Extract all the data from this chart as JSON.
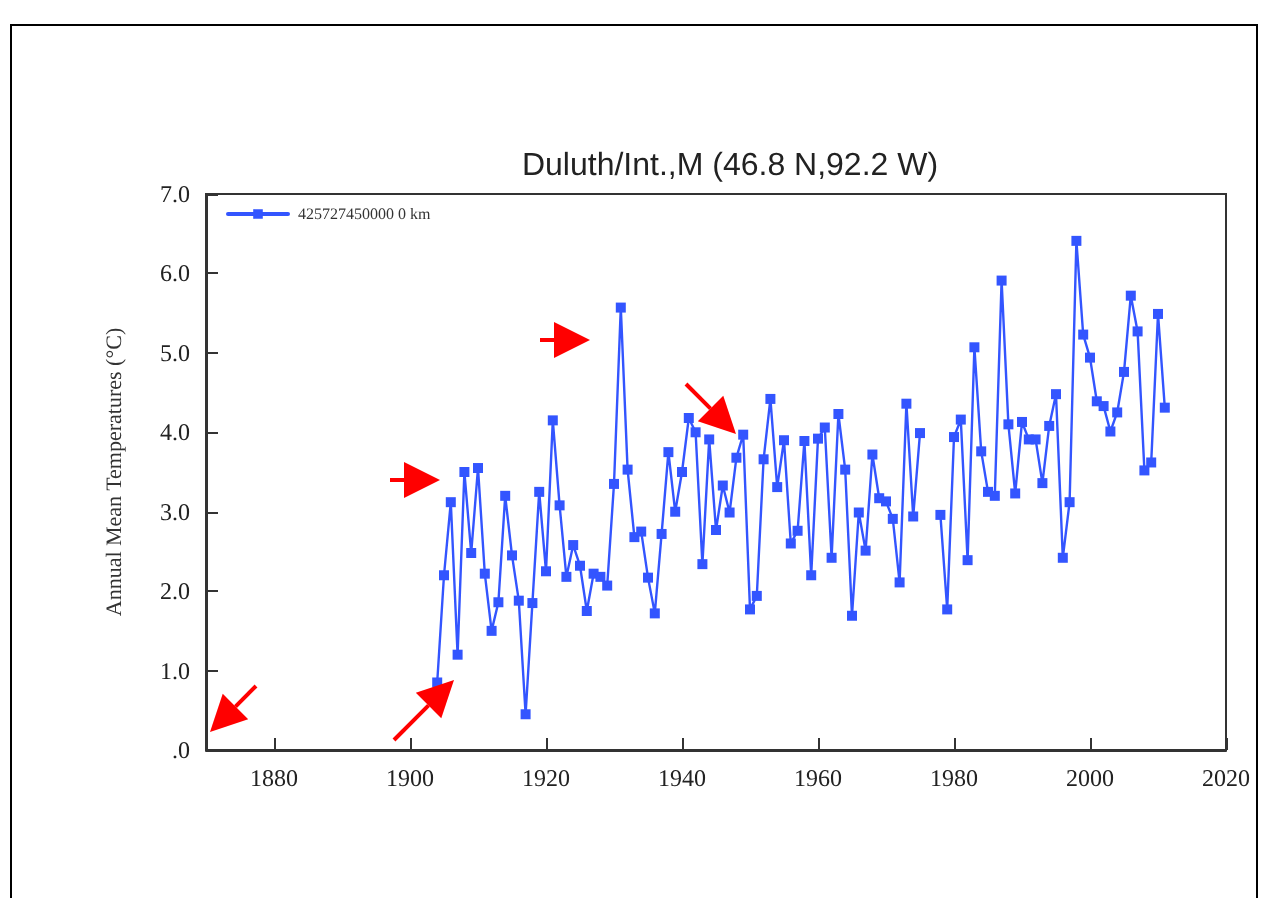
{
  "chart_data": {
    "type": "line",
    "title": "Duluth/Int.,M (46.8 N,92.2 W)",
    "ylabel": "Annual Mean Temperatures (°C)",
    "x": [
      1904,
      1905,
      1906,
      1907,
      1908,
      1909,
      1910,
      1911,
      1912,
      1913,
      1914,
      1915,
      1916,
      1917,
      1918,
      1919,
      1920,
      1921,
      1922,
      1923,
      1924,
      1925,
      1926,
      1927,
      1928,
      1929,
      1930,
      1931,
      1932,
      1933,
      1934,
      1935,
      1936,
      1937,
      1938,
      1939,
      1940,
      1941,
      1942,
      1943,
      1944,
      1945,
      1946,
      1947,
      1948,
      1949,
      1950,
      1951,
      1952,
      1953,
      1954,
      1955,
      1956,
      1957,
      1958,
      1959,
      1960,
      1961,
      1962,
      1963,
      1964,
      1965,
      1966,
      1967,
      1968,
      1969,
      1970,
      1971,
      1972,
      1973,
      1974,
      1975,
      1976,
      1977,
      1978,
      1979,
      1980,
      1981,
      1982,
      1983,
      1984,
      1985,
      1986,
      1987,
      1988,
      1989,
      1990,
      1991,
      1992,
      1993,
      1994,
      1995,
      1996,
      1997,
      1998,
      1999,
      2000,
      2001,
      2002,
      2003,
      2004,
      2005,
      2006,
      2007,
      2008,
      2009,
      2010,
      2011
    ],
    "series": [
      {
        "name": "425727450000 0 km",
        "color": "#3355ff",
        "values": [
          0.85,
          2.2,
          3.12,
          1.2,
          3.5,
          2.48,
          3.55,
          2.22,
          1.5,
          1.86,
          3.2,
          2.45,
          1.88,
          0.45,
          1.85,
          3.25,
          2.25,
          4.15,
          3.08,
          2.18,
          2.58,
          2.32,
          1.75,
          2.22,
          2.18,
          2.07,
          3.35,
          5.57,
          3.53,
          2.68,
          2.75,
          2.17,
          1.72,
          2.72,
          3.75,
          3.0,
          3.5,
          4.18,
          4.0,
          2.34,
          3.91,
          2.77,
          3.33,
          2.99,
          3.68,
          3.97,
          1.77,
          1.94,
          3.66,
          4.42,
          3.31,
          3.9,
          2.6,
          2.76,
          3.89,
          2.2,
          3.92,
          4.06,
          2.42,
          4.23,
          3.53,
          1.69,
          2.99,
          2.51,
          3.72,
          3.17,
          3.13,
          2.91,
          2.11,
          4.36,
          2.94,
          3.99,
          null,
          null,
          2.96,
          1.77,
          3.94,
          4.16,
          2.39,
          5.07,
          3.76,
          3.25,
          3.2,
          5.91,
          4.1,
          3.23,
          4.13,
          3.91,
          3.91,
          3.36,
          4.08,
          4.48,
          2.42,
          3.12,
          6.41,
          5.23,
          4.94,
          4.39,
          4.33,
          4.01,
          4.25,
          4.76,
          5.72,
          5.27,
          3.52,
          3.62,
          5.49,
          4.31
        ]
      }
    ],
    "xlim": [
      1870,
      2020
    ],
    "xticks": [
      1880,
      1900,
      1920,
      1940,
      1960,
      1980,
      2000,
      2020
    ],
    "ylim": [
      0,
      7
    ],
    "yticks": [
      {
        "value": 0,
        "label": ".0"
      },
      {
        "value": 1,
        "label": "1.0"
      },
      {
        "value": 2,
        "label": "2.0"
      },
      {
        "value": 3,
        "label": "3.0"
      },
      {
        "value": 4,
        "label": "4.0"
      },
      {
        "value": 5,
        "label": "5.0"
      },
      {
        "value": 6,
        "label": "6.0"
      },
      {
        "value": 7,
        "label": "7.0"
      }
    ],
    "grid": false,
    "legend": "top left",
    "marker": "square",
    "line_style": "solid"
  }
}
